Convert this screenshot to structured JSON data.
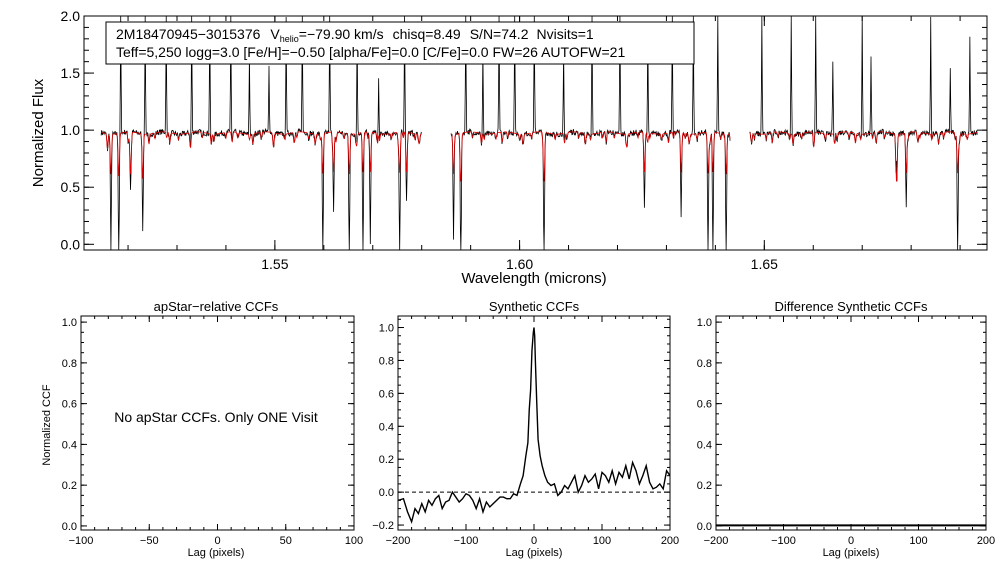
{
  "chart_data": [
    {
      "type": "line",
      "id": "spectrum",
      "title": "",
      "info_line1": {
        "star_id": "2M18470945−3015376",
        "vhelio_prefix": "V",
        "vhelio_sub": "helio",
        "vhelio_rest": "=−79.90 km/s",
        "chisq": "chisq=8.49",
        "snr": "S/N=74.2",
        "nvisits": "Nvisits=1"
      },
      "info_line2": "Teff=5,250 logg=3.0 [Fe/H]=−0.50 [alpha/Fe]=0.0 [C/Fe]=0.0 FW=26 AUTOFW=21",
      "xlabel": "Wavelength (microns)",
      "ylabel": "Normalized Flux",
      "xlim": [
        1.511,
        1.6955
      ],
      "ylim": [
        -0.05,
        2.0
      ],
      "xticks": [
        1.55,
        1.6,
        1.65
      ],
      "xtick_labels": [
        "1.55",
        "1.60",
        "1.65"
      ],
      "yticks": [
        0.0,
        0.5,
        1.0,
        1.5,
        2.0
      ],
      "ytick_labels": [
        "0.0",
        "0.5",
        "1.0",
        "1.5",
        "2.0"
      ],
      "chips": [
        [
          1.5145,
          1.58
        ],
        [
          1.586,
          1.643
        ],
        [
          1.647,
          1.6935
        ]
      ],
      "series": [
        {
          "name": "observed",
          "color": "#000000",
          "continuum": 0.97
        },
        {
          "name": "model",
          "color": "#dd0000",
          "continuum": 0.975
        }
      ],
      "absorption_lines": [
        {
          "x": 1.5165,
          "depth": 0.9
        },
        {
          "x": 1.5181,
          "depth": 1.0
        },
        {
          "x": 1.5205,
          "depth": 0.45
        },
        {
          "x": 1.523,
          "depth": 0.7
        },
        {
          "x": 1.5598,
          "depth": 1.0
        },
        {
          "x": 1.562,
          "depth": 0.6
        },
        {
          "x": 1.5652,
          "depth": 1.0
        },
        {
          "x": 1.568,
          "depth": 1.0
        },
        {
          "x": 1.5695,
          "depth": 0.85
        },
        {
          "x": 1.5755,
          "depth": 1.0
        },
        {
          "x": 1.5769,
          "depth": 0.55
        },
        {
          "x": 1.5865,
          "depth": 0.8
        },
        {
          "x": 1.588,
          "depth": 1.0
        },
        {
          "x": 1.605,
          "depth": 1.0
        },
        {
          "x": 1.6255,
          "depth": 0.6
        },
        {
          "x": 1.633,
          "depth": 0.65
        },
        {
          "x": 1.6385,
          "depth": 1.0
        },
        {
          "x": 1.6395,
          "depth": 1.0
        },
        {
          "x": 1.6422,
          "depth": 1.0
        },
        {
          "x": 1.677,
          "depth": 1.0
        },
        {
          "x": 1.679,
          "depth": 0.6
        },
        {
          "x": 1.6895,
          "depth": 1.0
        }
      ],
      "emission_spikes": [
        {
          "x": 1.5185,
          "height": 2.0
        },
        {
          "x": 1.5235,
          "height": 2.0
        },
        {
          "x": 1.5278,
          "height": 2.0
        },
        {
          "x": 1.533,
          "height": 2.0
        },
        {
          "x": 1.5367,
          "height": 2.0
        },
        {
          "x": 1.541,
          "height": 2.0
        },
        {
          "x": 1.5448,
          "height": 1.7
        },
        {
          "x": 1.5488,
          "height": 1.55
        },
        {
          "x": 1.5523,
          "height": 2.0
        },
        {
          "x": 1.5556,
          "height": 2.0
        },
        {
          "x": 1.5612,
          "height": 2.0
        },
        {
          "x": 1.5668,
          "height": 2.0
        },
        {
          "x": 1.5712,
          "height": 1.45
        },
        {
          "x": 1.5765,
          "height": 2.0
        },
        {
          "x": 1.589,
          "height": 2.0
        },
        {
          "x": 1.5925,
          "height": 1.7
        },
        {
          "x": 1.5958,
          "height": 2.0
        },
        {
          "x": 1.599,
          "height": 2.0
        },
        {
          "x": 1.603,
          "height": 2.0
        },
        {
          "x": 1.609,
          "height": 1.7
        },
        {
          "x": 1.6148,
          "height": 2.0
        },
        {
          "x": 1.6205,
          "height": 2.0
        },
        {
          "x": 1.6262,
          "height": 2.0
        },
        {
          "x": 1.6312,
          "height": 2.0
        },
        {
          "x": 1.6355,
          "height": 2.0
        },
        {
          "x": 1.6405,
          "height": 2.0
        },
        {
          "x": 1.6495,
          "height": 2.0
        },
        {
          "x": 1.6555,
          "height": 2.0
        },
        {
          "x": 1.6605,
          "height": 2.0
        },
        {
          "x": 1.664,
          "height": 1.6
        },
        {
          "x": 1.67,
          "height": 2.0
        },
        {
          "x": 1.6718,
          "height": 1.6
        },
        {
          "x": 1.677,
          "height": 2.0
        },
        {
          "x": 1.684,
          "height": 2.0
        },
        {
          "x": 1.688,
          "height": 1.5
        },
        {
          "x": 1.692,
          "height": 1.8
        }
      ]
    },
    {
      "type": "line",
      "id": "apstar",
      "title": "apStar−relative CCFs",
      "xlabel": "Lag (pixels)",
      "ylabel": "Normalized CCF",
      "xlim": [
        -100,
        100
      ],
      "ylim": [
        -0.02,
        1.03
      ],
      "xticks": [
        -100,
        -50,
        0,
        50,
        100
      ],
      "xtick_labels": [
        "−100",
        "−50",
        "0",
        "50",
        "100"
      ],
      "yticks": [
        0.0,
        0.2,
        0.4,
        0.6,
        0.8,
        1.0
      ],
      "ytick_labels": [
        "0.0",
        "0.2",
        "0.4",
        "0.6",
        "0.8",
        "1.0"
      ],
      "annotation": "No apStar CCFs.  Only ONE Visit",
      "series": []
    },
    {
      "type": "line",
      "id": "synthetic",
      "title": "Synthetic CCFs",
      "xlabel": "Lag (pixels)",
      "ylabel": "",
      "xlim": [
        -200,
        200
      ],
      "ylim": [
        -0.23,
        1.07
      ],
      "xticks": [
        -200,
        -100,
        0,
        100,
        200
      ],
      "xtick_labels": [
        "−200",
        "−100",
        "0",
        "100",
        "200"
      ],
      "yticks": [
        -0.2,
        0.0,
        0.2,
        0.4,
        0.6,
        0.8,
        1.0
      ],
      "ytick_labels": [
        "−0.2",
        "0.0",
        "0.2",
        "0.4",
        "0.6",
        "0.8",
        "1.0"
      ],
      "zero_line": 0.0,
      "series": [
        {
          "name": "ccf",
          "color": "#000000",
          "x": [
            -200,
            -192,
            -186,
            -180,
            -175,
            -170,
            -165,
            -160,
            -155,
            -150,
            -145,
            -140,
            -135,
            -130,
            -125,
            -120,
            -115,
            -110,
            -105,
            -100,
            -95,
            -90,
            -85,
            -80,
            -75,
            -70,
            -65,
            -60,
            -55,
            -50,
            -45,
            -40,
            -35,
            -30,
            -25,
            -20,
            -16,
            -12,
            -9,
            -7,
            -5,
            -3,
            -1,
            0,
            1,
            2,
            4,
            6,
            9,
            12,
            16,
            20,
            25,
            30,
            35,
            40,
            45,
            50,
            55,
            60,
            65,
            70,
            75,
            80,
            85,
            90,
            95,
            100,
            105,
            110,
            115,
            120,
            125,
            130,
            135,
            140,
            145,
            150,
            155,
            160,
            165,
            170,
            175,
            180,
            185,
            190,
            195,
            200
          ],
          "y": [
            -0.05,
            -0.04,
            -0.12,
            -0.18,
            -0.1,
            -0.13,
            -0.07,
            -0.12,
            -0.05,
            -0.08,
            -0.04,
            -0.02,
            -0.1,
            -0.06,
            -0.05,
            0.0,
            -0.03,
            -0.06,
            -0.04,
            -0.01,
            -0.02,
            -0.05,
            -0.1,
            -0.04,
            -0.12,
            -0.06,
            -0.09,
            -0.07,
            -0.05,
            -0.03,
            -0.03,
            -0.04,
            -0.04,
            -0.01,
            -0.02,
            0.05,
            0.1,
            0.22,
            0.3,
            0.5,
            0.62,
            0.86,
            0.97,
            1.0,
            0.95,
            0.8,
            0.55,
            0.32,
            0.22,
            0.16,
            0.1,
            0.06,
            0.04,
            0.05,
            -0.02,
            0.0,
            0.04,
            0.02,
            0.06,
            0.1,
            0.0,
            0.04,
            0.1,
            0.06,
            0.08,
            0.11,
            0.02,
            0.12,
            0.1,
            0.06,
            0.13,
            0.05,
            0.12,
            0.09,
            0.16,
            0.08,
            0.18,
            0.13,
            0.05,
            0.1,
            0.16,
            0.06,
            0.02,
            0.03,
            0.05,
            0.02,
            0.13,
            0.1
          ]
        }
      ]
    },
    {
      "type": "line",
      "id": "difference",
      "title": "Difference Synthetic CCFs",
      "xlabel": "Lag (pixels)",
      "ylabel": "",
      "xlim": [
        -200,
        200
      ],
      "ylim": [
        -0.02,
        1.03
      ],
      "xticks": [
        -200,
        -100,
        0,
        100,
        200
      ],
      "xtick_labels": [
        "−200",
        "−100",
        "0",
        "100",
        "200"
      ],
      "yticks": [
        0.0,
        0.2,
        0.4,
        0.6,
        0.8,
        1.0
      ],
      "ytick_labels": [
        "0.0",
        "0.2",
        "0.4",
        "0.6",
        "0.8",
        "1.0"
      ],
      "series": [
        {
          "name": "difference",
          "color": "#000000",
          "x": [
            -200,
            200
          ],
          "y": [
            0.0,
            0.0
          ]
        }
      ]
    }
  ]
}
